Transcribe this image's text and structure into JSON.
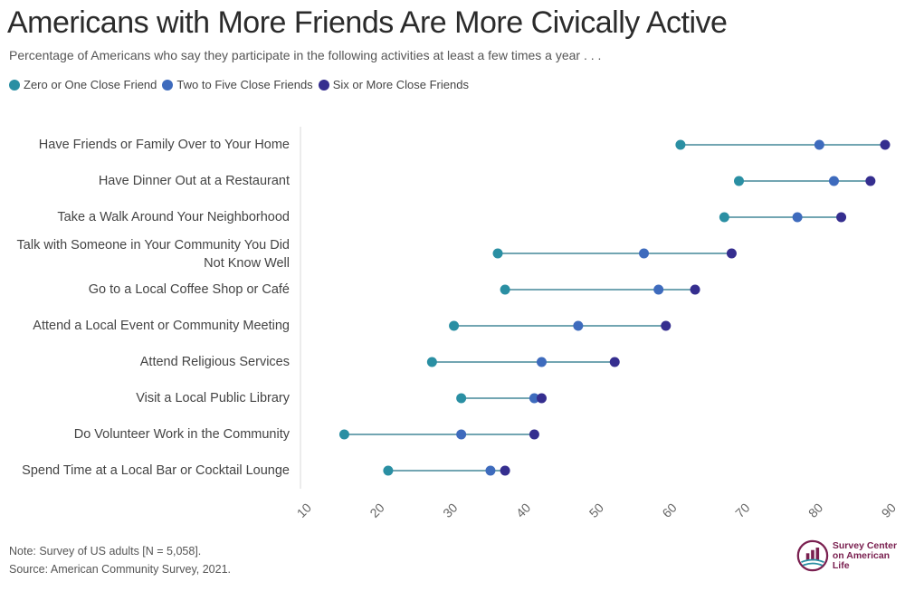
{
  "title": "Americans with More Friends Are More Civically Active",
  "subtitle": "Percentage of Americans who say they participate in the following activities at least a few times a year . . .",
  "note": "Note: Survey of US adults [N = 5,058].",
  "source": "Source: American Community Survey, 2021.",
  "logo": {
    "line1": "Survey Center",
    "line2": "on American Life"
  },
  "colors": {
    "zero_one": "#2a8fa3",
    "two_five": "#3e6bbd",
    "six_more": "#352e8f",
    "connector": "#1d6f85",
    "gridline": "#d9d9d9",
    "logo": "#7a2050"
  },
  "chart_data": {
    "type": "dot-plot",
    "xlim": [
      10,
      90
    ],
    "ticks": [
      "10",
      "20",
      "30",
      "40",
      "50",
      "60",
      "70",
      "80",
      "90"
    ],
    "grid": "vertical line at x = 10",
    "legend_position": "top-left",
    "categories": [
      [
        "Have Friends or Family Over to Your Home"
      ],
      [
        "Have Dinner Out at a Restaurant"
      ],
      [
        "Take a Walk Around Your Neighborhood"
      ],
      [
        "Talk with Someone in Your Community You Did",
        "Not Know Well"
      ],
      [
        "Go to a Local Coffee Shop or Café"
      ],
      [
        "Attend a Local Event or Community Meeting"
      ],
      [
        "Attend Religious Services"
      ],
      [
        "Visit a Local Public Library"
      ],
      [
        "Do Volunteer Work in the Community"
      ],
      [
        "Spend Time at a Local Bar or Cocktail Lounge"
      ]
    ],
    "series": [
      {
        "name": "Zero or One Close Friend",
        "values": [
          62,
          70,
          68,
          37,
          38,
          31,
          28,
          32,
          16,
          22
        ]
      },
      {
        "name": "Two to Five Close Friends",
        "values": [
          81,
          83,
          78,
          57,
          59,
          48,
          43,
          42,
          32,
          36
        ]
      },
      {
        "name": "Six or More Close Friends",
        "values": [
          90,
          88,
          84,
          69,
          64,
          60,
          53,
          43,
          42,
          38
        ]
      }
    ]
  }
}
